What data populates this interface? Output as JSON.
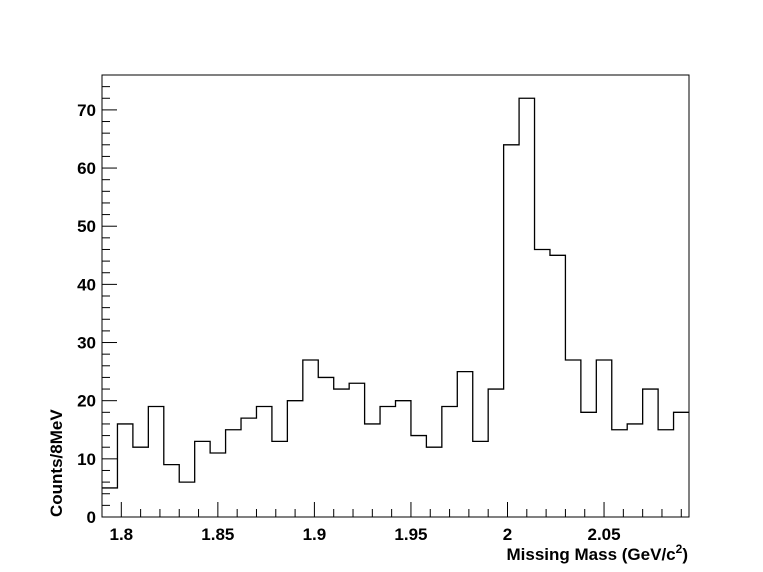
{
  "chart_data": {
    "type": "histogram",
    "xlabel": "Missing Mass (GeV/c",
    "xlabel_superscript": "2",
    "xlabel_suffix": ")",
    "ylabel": "Counts/8MeV",
    "xlim": [
      1.79,
      2.094
    ],
    "ylim": [
      0,
      76
    ],
    "bin_width": 0.008,
    "x_ticks": [
      1.8,
      1.85,
      1.9,
      1.95,
      2.0,
      2.05
    ],
    "x_tick_labels": [
      "1.8",
      "1.85",
      "1.9",
      "1.95",
      "2",
      "2.05"
    ],
    "y_ticks": [
      0,
      10,
      20,
      30,
      40,
      50,
      60,
      70
    ],
    "y_tick_labels": [
      "0",
      "10",
      "20",
      "30",
      "40",
      "50",
      "60",
      "70"
    ],
    "bin_edges": [
      1.79,
      1.798,
      1.806,
      1.814,
      1.822,
      1.83,
      1.838,
      1.846,
      1.854,
      1.862,
      1.87,
      1.878,
      1.886,
      1.894,
      1.902,
      1.91,
      1.918,
      1.926,
      1.934,
      1.942,
      1.95,
      1.958,
      1.966,
      1.974,
      1.982,
      1.99,
      1.998,
      2.006,
      2.014,
      2.022,
      2.03,
      2.038,
      2.046,
      2.054,
      2.062,
      2.07,
      2.078,
      2.086,
      2.094
    ],
    "values": [
      5,
      16,
      12,
      19,
      9,
      6,
      13,
      11,
      15,
      17,
      19,
      13,
      20,
      27,
      24,
      22,
      23,
      16,
      19,
      20,
      14,
      12,
      19,
      25,
      13,
      22,
      64,
      72,
      46,
      45,
      27,
      18,
      27,
      15,
      16,
      22,
      15,
      18
    ],
    "grid": false,
    "legend": "none"
  }
}
